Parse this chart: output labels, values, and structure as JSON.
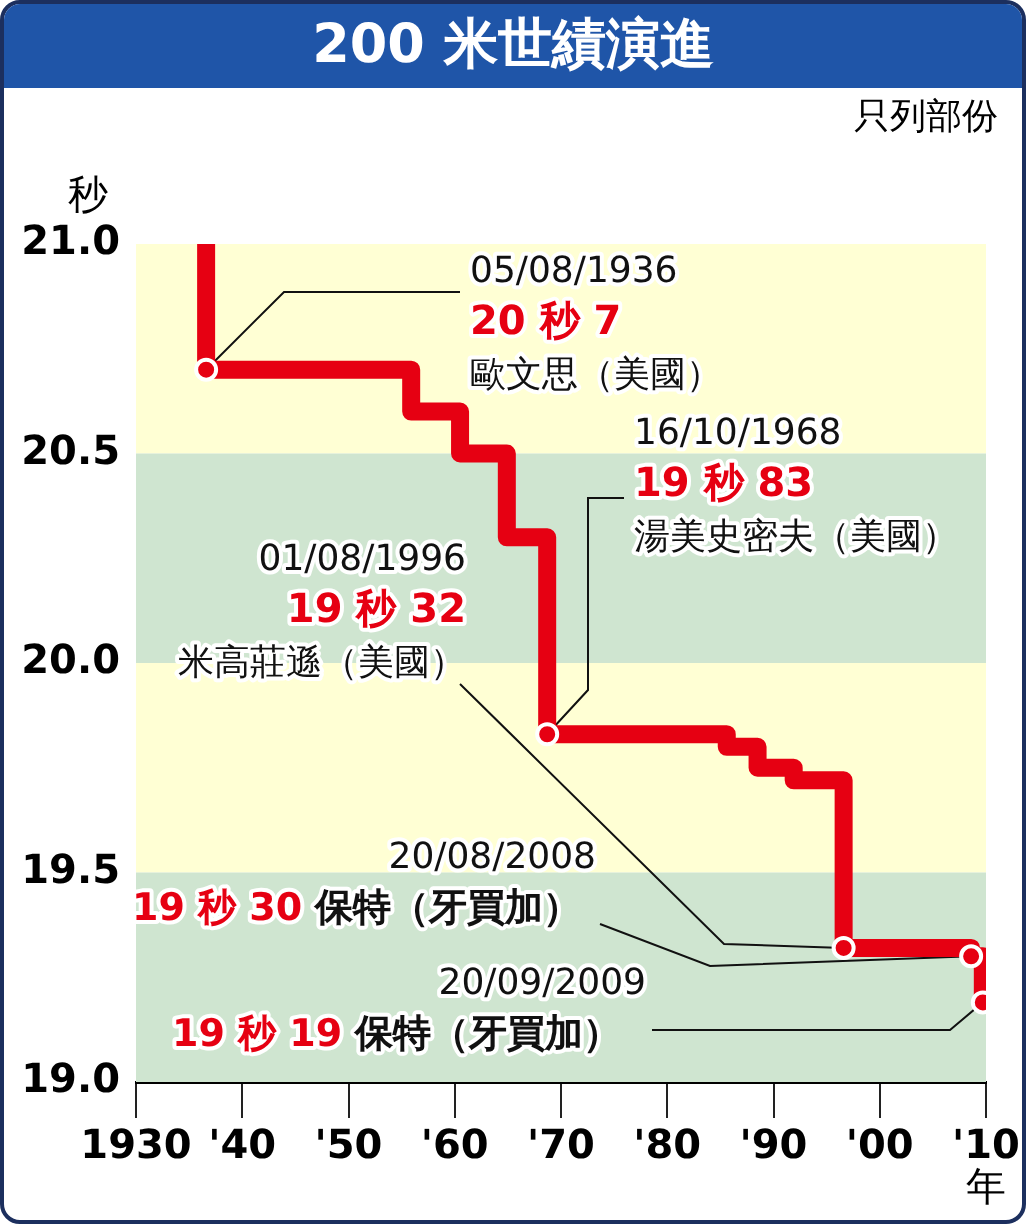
{
  "chart_data": {
    "type": "step",
    "title": "200 米世績演進",
    "subtitle": "只列部份",
    "ylabel": "秒",
    "xlabel": "年",
    "series": [
      {
        "type": "step",
        "color": "#e60012",
        "marker": "none",
        "x": [
          1936.6,
          1936.6,
          1955.9,
          1960.5,
          1964.9,
          1968.7,
          1985.6,
          1988.5,
          1991.9,
          1996.6,
          2008.6,
          2009.7
        ],
        "values": [
          21.0,
          20.7,
          20.6,
          20.5,
          20.3,
          19.83,
          19.8,
          19.75,
          19.72,
          19.32,
          19.3,
          19.19
        ]
      },
      {
        "type": "scatter",
        "color": "#e60012",
        "marker": "circle",
        "x": [
          1936.6,
          1968.7,
          1996.6,
          2008.6,
          2009.7
        ],
        "values": [
          20.7,
          19.83,
          19.32,
          19.3,
          19.19
        ]
      }
    ],
    "xlim": [
      1930,
      2010
    ],
    "xticks": [
      {
        "value": 1930,
        "label": "1930"
      },
      {
        "value": 1940,
        "label": "'40"
      },
      {
        "value": 1950,
        "label": "'50"
      },
      {
        "value": 1960,
        "label": "'60"
      },
      {
        "value": 1970,
        "label": "'70"
      },
      {
        "value": 1980,
        "label": "'80"
      },
      {
        "value": 1990,
        "label": "'90"
      },
      {
        "value": 2000,
        "label": "'00"
      },
      {
        "value": 2010,
        "label": "'10"
      }
    ],
    "ylim": [
      19.0,
      21.0
    ],
    "yticks": [
      {
        "value": 19.0,
        "label": "19.0"
      },
      19.5,
      {
        "value": 20.0,
        "label": "20.0"
      },
      20.5,
      {
        "value": 21.0,
        "label": "21.0"
      }
    ],
    "bands": [
      {
        "axis": "y",
        "from": 21.0,
        "to": 20.5,
        "color": "#ffffd4"
      },
      {
        "axis": "y",
        "from": 20.5,
        "to": 20.0,
        "color": "#cfe5d0"
      },
      {
        "axis": "y",
        "from": 20.0,
        "to": 19.5,
        "color": "#ffffd4"
      },
      {
        "axis": "y",
        "from": 19.5,
        "to": 19.0,
        "color": "#cfe5d0"
      }
    ],
    "grid": false,
    "legend": false,
    "annotations": [
      {
        "text": "05/08/1936\n20 秒 7\n歐文思（美國）",
        "x": 1936.6,
        "y": 20.7
      },
      {
        "text": "16/10/1968\n19 秒 83\n湯美史密夫（美國）",
        "x": 1968.7,
        "y": 19.83
      },
      {
        "text": "01/08/1996\n19 秒 32\n米高莊遜（美國）",
        "x": 1996.6,
        "y": 19.32
      },
      {
        "text": "20/08/2008\n19 秒 30 保特（牙買加）",
        "x": 2008.6,
        "y": 19.3
      },
      {
        "text": "20/09/2009\n19 秒 19 保特（牙買加）",
        "x": 2009.7,
        "y": 19.19
      }
    ]
  }
}
